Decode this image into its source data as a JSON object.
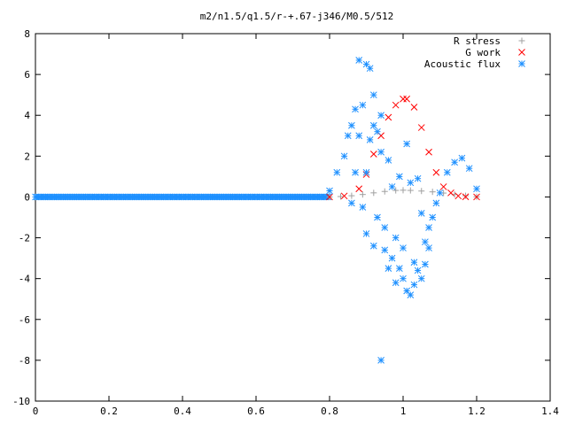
{
  "chart_data": {
    "type": "scatter",
    "title": "m2/n1.5/q1.5/r-+.67-j346/M0.5/512",
    "xlabel": "",
    "ylabel": "",
    "xlim": [
      0,
      1.4
    ],
    "ylim": [
      -10,
      8
    ],
    "xticks": [
      "0",
      "0.2",
      "0.4",
      "0.6",
      "0.8",
      "1",
      "1.2",
      "1.4"
    ],
    "yticks": [
      "-10",
      "-8",
      "-6",
      "-4",
      "-2",
      "0",
      "2",
      "4",
      "6",
      "8"
    ],
    "grid": false,
    "legend_position": "top-right",
    "series": [
      {
        "name": "R stress",
        "marker": "plus",
        "color": "#a0a0a0",
        "x": [
          0.8,
          0.83,
          0.86,
          0.89,
          0.92,
          0.95,
          0.98,
          1.0,
          1.02,
          1.05,
          1.08,
          1.11,
          1.14,
          1.17,
          1.2
        ],
        "y": [
          0.0,
          0.02,
          0.06,
          0.12,
          0.2,
          0.27,
          0.32,
          0.33,
          0.32,
          0.29,
          0.25,
          0.19,
          0.12,
          0.06,
          0.01
        ]
      },
      {
        "name": "G work",
        "marker": "cross",
        "color": "#ff0000",
        "x": [
          0.8,
          0.84,
          0.88,
          0.9,
          0.92,
          0.94,
          0.96,
          0.98,
          1.0,
          1.01,
          1.03,
          1.05,
          1.07,
          1.09,
          1.11,
          1.13,
          1.15,
          1.17,
          1.2
        ],
        "y": [
          0.0,
          0.05,
          0.4,
          1.1,
          2.1,
          3.0,
          3.9,
          4.5,
          4.8,
          4.8,
          4.4,
          3.4,
          2.2,
          1.2,
          0.5,
          0.2,
          0.05,
          0.01,
          0.0
        ]
      },
      {
        "name": "Acoustic flux",
        "marker": "star",
        "color": "#1e90ff",
        "x": [
          0.8,
          0.82,
          0.84,
          0.85,
          0.86,
          0.86,
          0.87,
          0.87,
          0.88,
          0.88,
          0.89,
          0.89,
          0.9,
          0.9,
          0.9,
          0.91,
          0.91,
          0.92,
          0.92,
          0.92,
          0.93,
          0.93,
          0.94,
          0.94,
          0.94,
          0.95,
          0.95,
          0.96,
          0.96,
          0.97,
          0.97,
          0.98,
          0.98,
          0.99,
          0.99,
          1.0,
          1.0,
          1.01,
          1.01,
          1.02,
          1.02,
          1.03,
          1.03,
          1.04,
          1.04,
          1.05,
          1.05,
          1.06,
          1.06,
          1.07,
          1.07,
          1.08,
          1.09,
          1.1,
          1.12,
          1.14,
          1.16,
          1.18,
          1.2
        ],
        "y": [
          0.3,
          1.2,
          2.0,
          3.0,
          -0.3,
          3.5,
          1.2,
          4.3,
          3.0,
          6.7,
          -0.5,
          4.5,
          6.5,
          1.2,
          -1.8,
          2.8,
          6.3,
          -2.4,
          3.5,
          5.0,
          -1.0,
          3.2,
          -8.0,
          2.2,
          4.0,
          -1.5,
          -2.6,
          1.8,
          -3.5,
          -3.0,
          0.5,
          -2.0,
          -4.2,
          -3.5,
          1.0,
          -4.0,
          -2.5,
          -4.6,
          2.6,
          -4.8,
          0.7,
          -4.3,
          -3.2,
          -3.6,
          0.9,
          -4.0,
          -0.8,
          -3.3,
          -2.2,
          -2.5,
          -1.5,
          -1.0,
          -0.3,
          0.2,
          1.2,
          1.7,
          1.9,
          1.4,
          0.4
        ]
      }
    ]
  }
}
